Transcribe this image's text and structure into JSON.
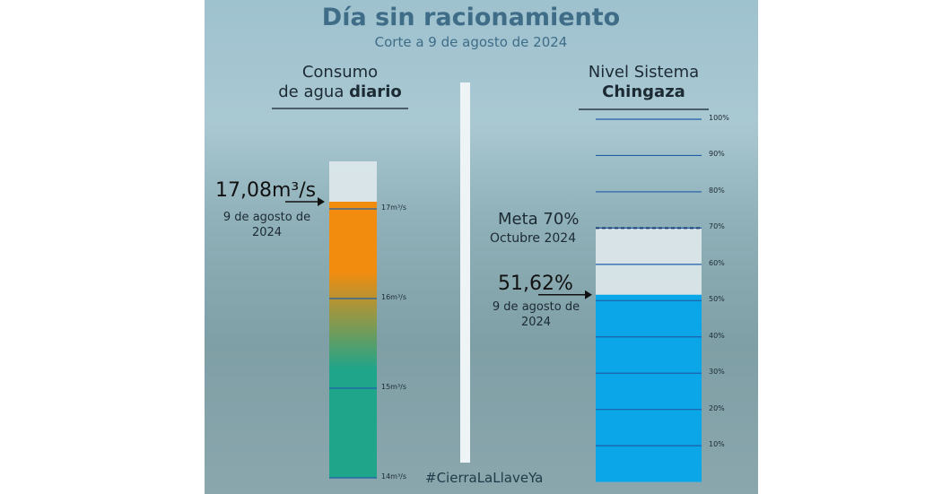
{
  "header": {
    "title": "Día sin racionamiento",
    "subtitle": "Corte a 9 de agosto de 2024"
  },
  "chart_data": [
    {
      "type": "bar",
      "title": "Consumo",
      "title2": "de agua",
      "title_bold": "diario",
      "value": 17.08,
      "value_label": "17,08m³/s",
      "date": "9 de agosto de 2024",
      "ylim": [
        14,
        17.53
      ],
      "yticks": [
        {
          "value": 14,
          "label": "14m³/s"
        },
        {
          "value": 15,
          "label": "15m³/s"
        },
        {
          "value": 16,
          "label": "16m³/s"
        },
        {
          "value": 17,
          "label": "17m³/s"
        }
      ],
      "colors": [
        "#f28c0f",
        "#1fa58a"
      ],
      "grid": true
    },
    {
      "type": "bar",
      "title": "Nivel Sistema",
      "title_bold": "Chingaza",
      "value": 51.62,
      "value_label": "51,62%",
      "date": "9 de agosto de 2024",
      "target": {
        "value": 70,
        "label": "Meta 70%",
        "note": "Octubre 2024"
      },
      "ylim": [
        0,
        100
      ],
      "yticks": [
        {
          "value": 10,
          "label": "10%"
        },
        {
          "value": 20,
          "label": "20%"
        },
        {
          "value": 30,
          "label": "30%"
        },
        {
          "value": 40,
          "label": "40%"
        },
        {
          "value": 50,
          "label": "50%"
        },
        {
          "value": 60,
          "label": "60%"
        },
        {
          "value": 70,
          "label": "70%"
        },
        {
          "value": 80,
          "label": "80%"
        },
        {
          "value": 90,
          "label": "90%"
        },
        {
          "value": 100,
          "label": "100%"
        }
      ],
      "color": "#0aa6e8",
      "grid": true
    }
  ],
  "hashtag": "#CierraLaLlaveYa"
}
